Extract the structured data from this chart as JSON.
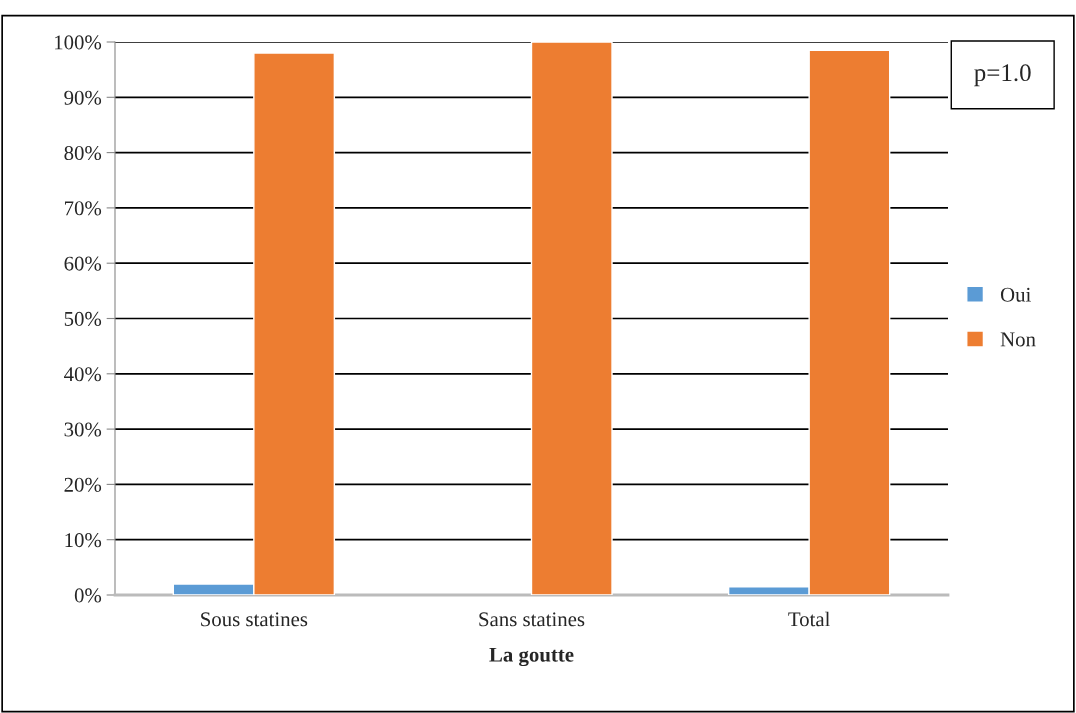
{
  "chart_data": {
    "type": "bar",
    "xlabel": "La goutte",
    "categories": [
      "Sous statines",
      "Sans statines",
      "Total"
    ],
    "series": [
      {
        "name": "Oui",
        "color": "#5b9bd5",
        "values": [
          2,
          null,
          1.5
        ]
      },
      {
        "name": "Non",
        "color": "#ed7d31",
        "values": [
          98,
          100,
          98.5
        ]
      }
    ],
    "ylim": [
      0,
      100
    ],
    "yticks": [
      {
        "value": 0,
        "label": "0%"
      },
      {
        "value": 10,
        "label": "10%"
      },
      {
        "value": 20,
        "label": "20%"
      },
      {
        "value": 30,
        "label": "30%"
      },
      {
        "value": 40,
        "label": "40%"
      },
      {
        "value": 50,
        "label": "50%"
      },
      {
        "value": 60,
        "label": "60%"
      },
      {
        "value": 70,
        "label": "70%"
      },
      {
        "value": 80,
        "label": "80%"
      },
      {
        "value": 90,
        "label": "90%"
      },
      {
        "value": 100,
        "label": "100%"
      }
    ],
    "grid": "y",
    "legend": "right",
    "annotations": [
      "p=1.0"
    ]
  }
}
